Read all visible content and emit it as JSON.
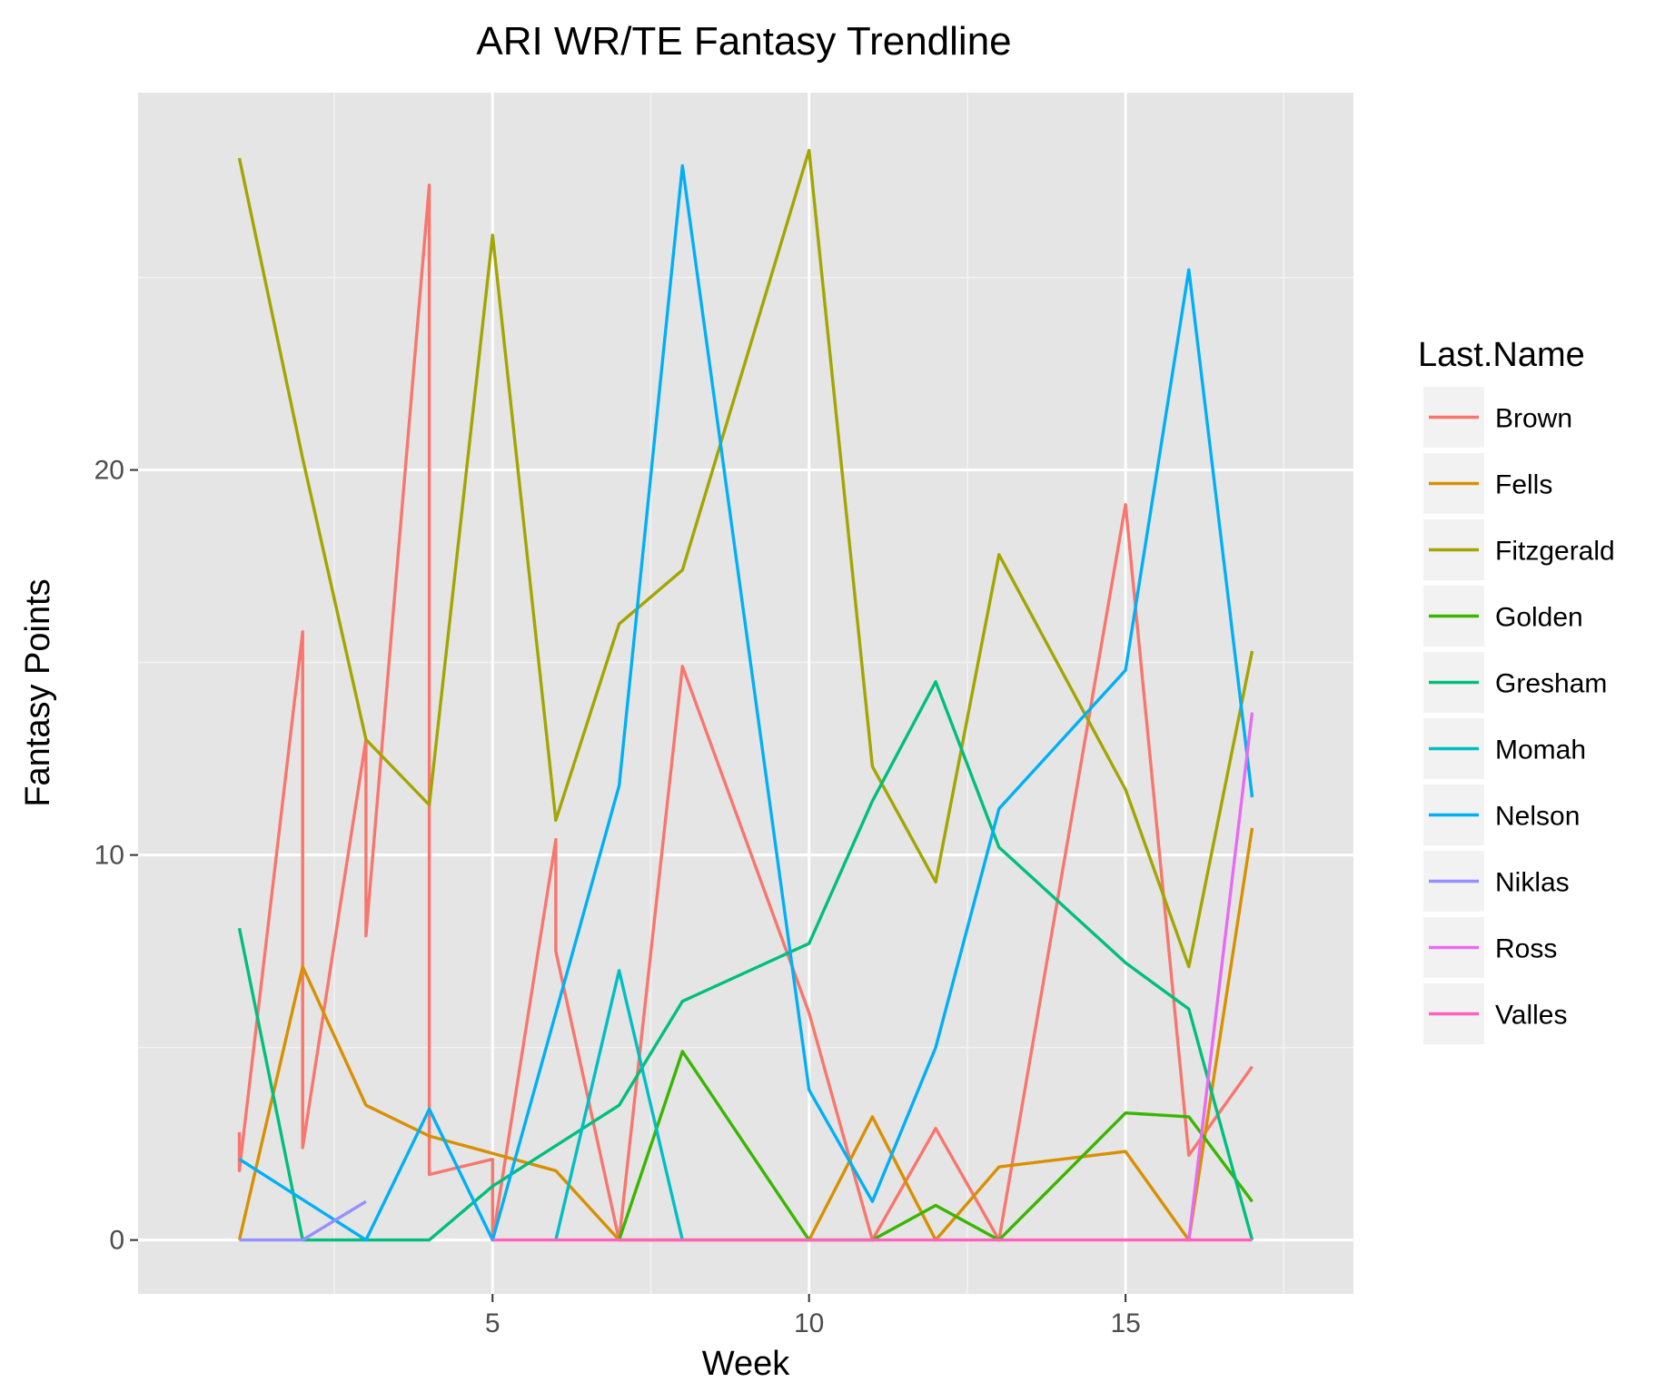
{
  "chart_data": {
    "type": "line",
    "title": "ARI WR/TE Fantasy Trendline",
    "xlabel": "Week",
    "ylabel": "Fantasy Points",
    "xlim": [
      -0.6,
      18.6
    ],
    "ylim": [
      -1.4,
      29.8
    ],
    "x_ticks": [
      5,
      10,
      15
    ],
    "y_ticks": [
      0,
      10,
      20
    ],
    "grid": true,
    "legend_title": "Last.Name",
    "legend_position": "right",
    "series": [
      {
        "name": "Brown",
        "color": "#F8766D",
        "points": [
          [
            1,
            2.8
          ],
          [
            1,
            1.8
          ],
          [
            2,
            15.8
          ],
          [
            2,
            2.4
          ],
          [
            3,
            13.0
          ],
          [
            3,
            7.9
          ],
          [
            4,
            27.4
          ],
          [
            4,
            1.7
          ],
          [
            5,
            2.1
          ],
          [
            5,
            0
          ],
          [
            6,
            10.4
          ],
          [
            6,
            7.5
          ],
          [
            7,
            0
          ],
          [
            8,
            14.9
          ],
          [
            10,
            5.9
          ],
          [
            11,
            0
          ],
          [
            12,
            2.9
          ],
          [
            13,
            0
          ],
          [
            15,
            19.1
          ],
          [
            16,
            2.2
          ],
          [
            17,
            4.5
          ]
        ]
      },
      {
        "name": "Fells",
        "color": "#D89000",
        "points": [
          [
            1,
            0
          ],
          [
            2,
            7.1
          ],
          [
            3,
            3.5
          ],
          [
            4,
            2.7
          ],
          [
            6,
            1.8
          ],
          [
            7,
            0
          ],
          [
            10,
            0
          ],
          [
            11,
            3.2
          ],
          [
            12,
            0
          ],
          [
            13,
            1.9
          ],
          [
            15,
            2.3
          ],
          [
            16,
            0
          ],
          [
            17,
            10.7
          ]
        ]
      },
      {
        "name": "Fitzgerald",
        "color": "#A3A500",
        "points": [
          [
            1,
            28.1
          ],
          [
            2,
            20.3
          ],
          [
            3,
            13.0
          ],
          [
            4,
            11.3
          ],
          [
            5,
            26.1
          ],
          [
            6,
            10.9
          ],
          [
            7,
            16.0
          ],
          [
            8,
            17.4
          ],
          [
            10,
            28.3
          ],
          [
            11,
            12.3
          ],
          [
            12,
            9.3
          ],
          [
            13,
            17.8
          ],
          [
            15,
            11.7
          ],
          [
            16,
            7.1
          ],
          [
            17,
            15.3
          ]
        ]
      },
      {
        "name": "Golden",
        "color": "#39B600",
        "points": [
          [
            7,
            0
          ],
          [
            8,
            4.9
          ],
          [
            10,
            0
          ],
          [
            11,
            0
          ],
          [
            12,
            0.9
          ],
          [
            13,
            0
          ],
          [
            15,
            3.3
          ],
          [
            16,
            3.2
          ],
          [
            17,
            1.0
          ]
        ]
      },
      {
        "name": "Gresham",
        "color": "#00BF7D",
        "points": [
          [
            1,
            8.1
          ],
          [
            2,
            0
          ],
          [
            3,
            0
          ],
          [
            4,
            0
          ],
          [
            5,
            1.4
          ],
          [
            7,
            3.5
          ],
          [
            8,
            6.2
          ],
          [
            10,
            7.7
          ],
          [
            11,
            11.4
          ],
          [
            12,
            14.5
          ],
          [
            13,
            10.2
          ],
          [
            15,
            7.2
          ],
          [
            16,
            6.0
          ],
          [
            17,
            0
          ]
        ]
      },
      {
        "name": "Momah",
        "color": "#00BFC4",
        "points": [
          [
            6,
            0
          ],
          [
            7,
            7.0
          ],
          [
            8,
            0
          ]
        ]
      },
      {
        "name": "Nelson",
        "color": "#00B0F6",
        "points": [
          [
            1,
            2.1
          ],
          [
            3,
            0
          ],
          [
            4,
            3.4
          ],
          [
            5,
            0
          ],
          [
            7,
            11.8
          ],
          [
            8,
            27.9
          ],
          [
            10,
            3.9
          ],
          [
            11,
            1.0
          ],
          [
            12,
            5.0
          ],
          [
            13,
            11.2
          ],
          [
            15,
            14.8
          ],
          [
            16,
            25.2
          ],
          [
            17,
            11.5
          ]
        ]
      },
      {
        "name": "Niklas",
        "color": "#9590FF",
        "points": [
          [
            1,
            0
          ],
          [
            2,
            0
          ],
          [
            3,
            1.0
          ]
        ]
      },
      {
        "name": "Ross",
        "color": "#E76BF3",
        "points": [
          [
            16,
            0
          ],
          [
            17,
            13.7
          ]
        ]
      },
      {
        "name": "Valles",
        "color": "#FF62BC",
        "points": [
          [
            5,
            0
          ],
          [
            17,
            0
          ]
        ]
      }
    ]
  }
}
